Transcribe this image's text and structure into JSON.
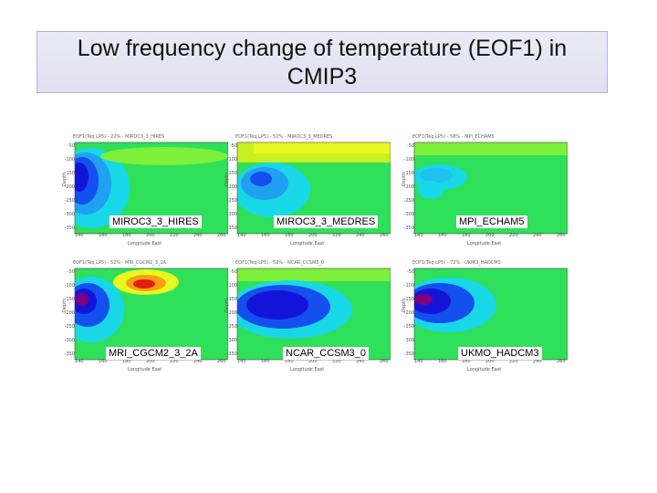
{
  "title": {
    "line1": "Low frequency change of temperature (EOF1) in",
    "line2": "CMIP3"
  },
  "panels": [
    {
      "model": "MIROC3_3_HIRES",
      "header": "EOF1(Teq LP5) - 22% - MIROC3_3_HIRES",
      "style": "hires"
    },
    {
      "model": "MIROC3_3_MEDRES",
      "header": "EOF1(Teq LP5) - 52% - MIROC3_3_MEDRES",
      "style": "medres"
    },
    {
      "model": "MPI_ECHAM5",
      "header": "EOF1(Teq LP5) - 58% - MPI_ECHAM5",
      "style": "echam"
    },
    {
      "model": "MRI_CGCM2_3_2A",
      "header": "EOF1(Teq LP5) - 52% - MRI_CGCM2_3_2A",
      "style": "mri"
    },
    {
      "model": "NCAR_CCSM3_0",
      "header": "EOF1(Teq LP5) - 52% - NCAR_CCSM3_0",
      "style": "ncar"
    },
    {
      "model": "UKMO_HADCM3",
      "header": "EOF1(Teq LP5) - 72% - UKMO_HADCM3",
      "style": "ukmo"
    }
  ],
  "axes": {
    "ylabel": "Depth",
    "xlabel": "Longitude East",
    "yticks": [
      "-50",
      "-100",
      "-150",
      "-200",
      "-250",
      "-300",
      "-350"
    ],
    "xticks": [
      "140",
      "160",
      "180",
      "200",
      "220",
      "240",
      "260"
    ]
  },
  "colors": {
    "background_green": "#2ee05a",
    "deep_blue": "#1414d8",
    "cyan": "#18d8e8",
    "yellow": "#e8f820",
    "red": "#e02010"
  }
}
